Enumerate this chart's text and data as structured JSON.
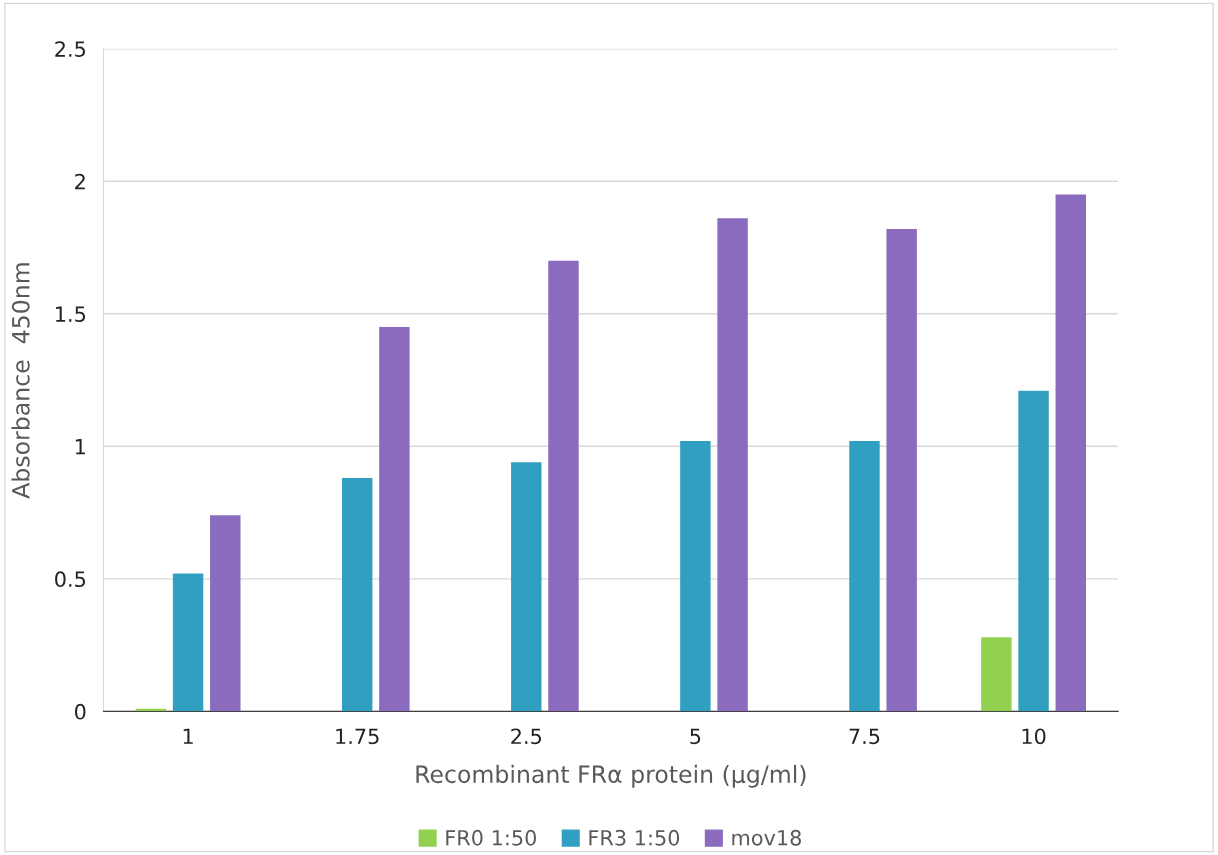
{
  "chart_data": {
    "type": "bar",
    "xlabel": "Recombinant FRα protein (μg/ml)",
    "ylabel": "Absorbance  450nm",
    "categories": [
      "1",
      "1.75",
      "2.5",
      "5",
      "7.5",
      "10"
    ],
    "series": [
      {
        "name": "FR0 1:50",
        "color": "#92d050",
        "values": [
          0.01,
          0,
          0,
          0,
          0,
          0.28
        ]
      },
      {
        "name": "FR3 1:50",
        "color": "#31a0c0",
        "values": [
          0.52,
          0.88,
          0.94,
          1.02,
          1.02,
          1.21
        ]
      },
      {
        "name": "mov18",
        "color": "#8a6bbd",
        "values": [
          0.74,
          1.45,
          1.7,
          1.86,
          1.82,
          1.95
        ]
      }
    ],
    "ylim": [
      0,
      2.5
    ],
    "yticks": [
      0,
      0.5,
      1,
      1.5,
      2,
      2.5
    ],
    "grid": "y",
    "legend": "bottom"
  }
}
